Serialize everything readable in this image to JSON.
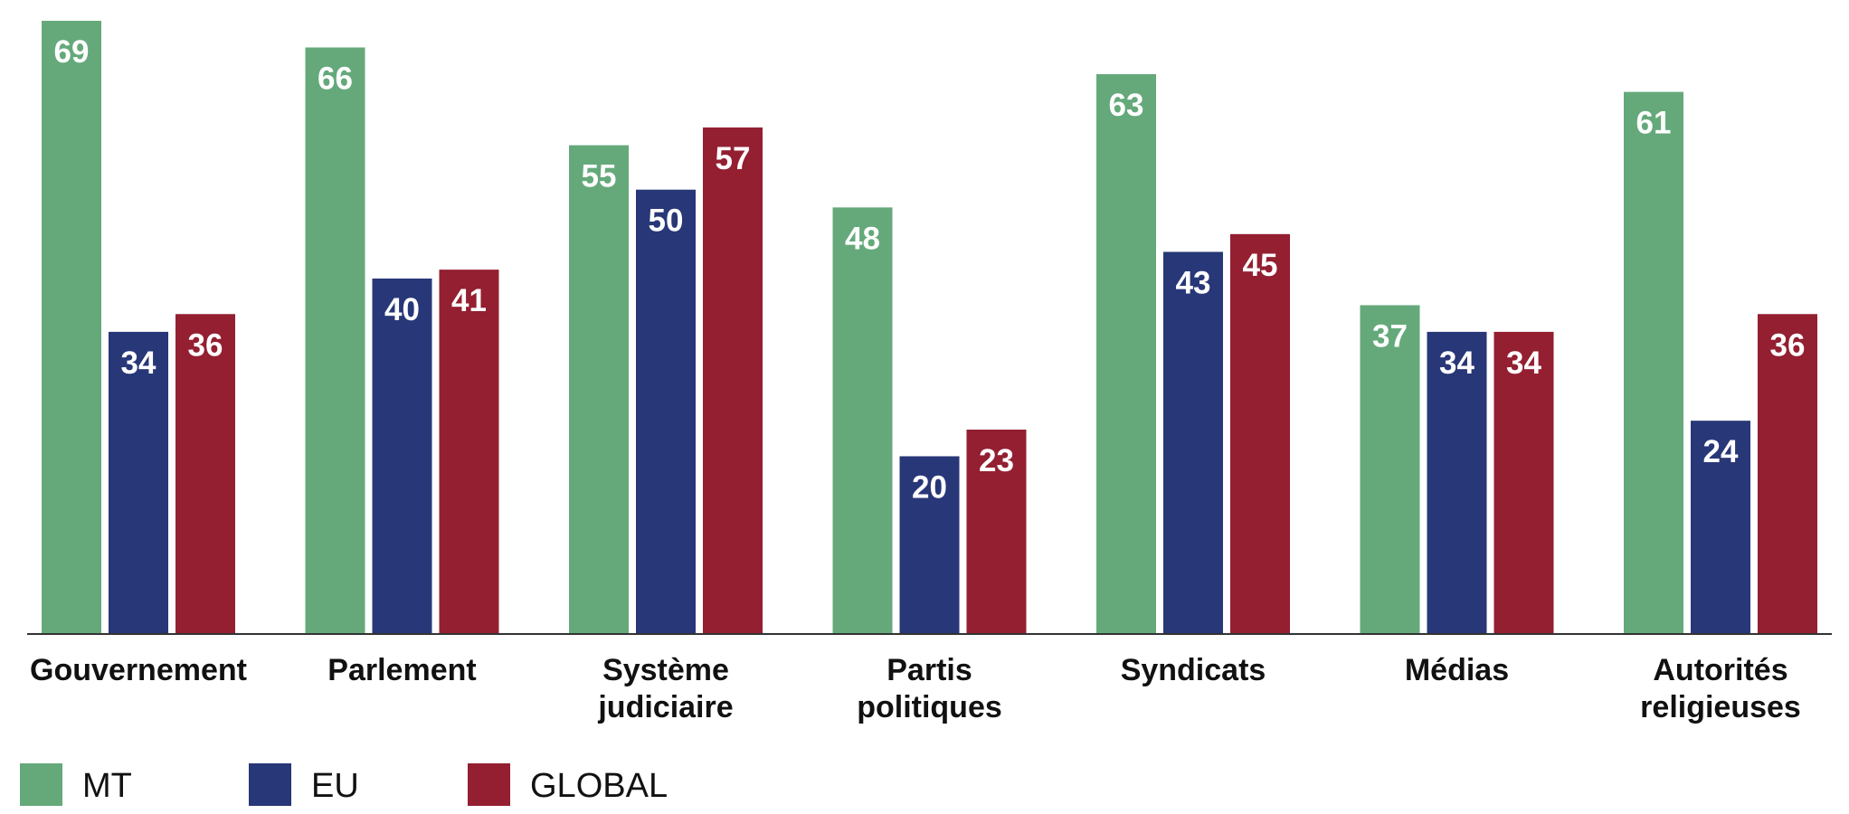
{
  "chart_data": {
    "type": "bar",
    "categories": [
      "Gouvernement",
      "Parlement",
      "Système judiciaire",
      "Partis politiques",
      "Syndicats",
      "Médias",
      "Autorités religieuses"
    ],
    "category_lines": [
      [
        "Gouvernement"
      ],
      [
        "Parlement"
      ],
      [
        "Système",
        "judiciaire"
      ],
      [
        "Partis",
        "politiques"
      ],
      [
        "Syndicats"
      ],
      [
        "Médias"
      ],
      [
        "Autorités",
        "religieuses"
      ]
    ],
    "series": [
      {
        "name": "MT",
        "color": "#65a97b",
        "values": [
          69,
          66,
          55,
          48,
          63,
          37,
          61
        ]
      },
      {
        "name": "EU",
        "color": "#283777",
        "values": [
          34,
          40,
          50,
          20,
          43,
          34,
          24
        ]
      },
      {
        "name": "GLOBAL",
        "color": "#931f31",
        "values": [
          36,
          41,
          57,
          23,
          45,
          34,
          36
        ]
      }
    ],
    "ylim": [
      0,
      70
    ],
    "grid": false,
    "legend_position": "bottom-left",
    "data_labels": true
  }
}
